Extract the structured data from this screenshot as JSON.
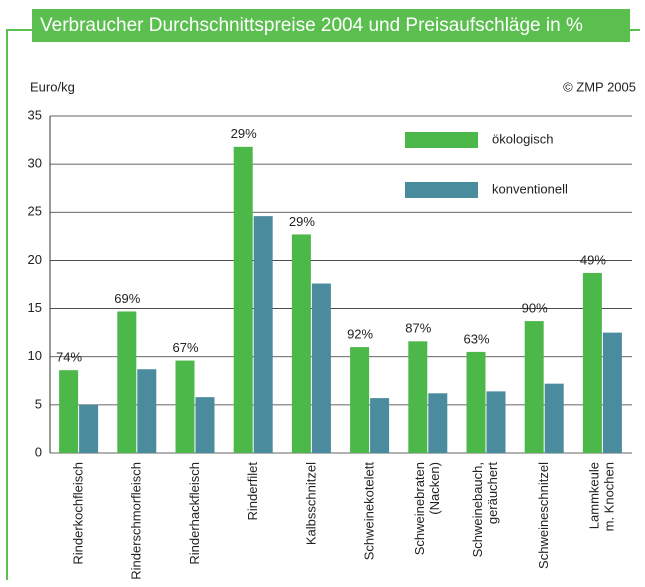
{
  "chart_data": {
    "type": "bar",
    "title": "Verbraucher Durchschnittspreise 2004 und Preisaufschläge in %",
    "y_label": "Euro/kg",
    "source": "© ZMP 2005",
    "categories": [
      "Rinderkochfleisch",
      "Rinderschmorfleisch",
      "Rinderhackfleisch",
      "Rinderfilet",
      "Kalbsschnitzel",
      "Schweinekotelett",
      "Schweinebraten\n(Nacken)",
      "Schweinebauch,\ngeräuchert",
      "Schweineschnitzel",
      "Lammkeule\nm. Knochen"
    ],
    "series": [
      {
        "name": "ökologisch",
        "color": "#4cb84a",
        "values": [
          8.6,
          14.7,
          9.6,
          31.8,
          22.7,
          11.0,
          11.6,
          10.5,
          13.7,
          18.7
        ]
      },
      {
        "name": "konventionell",
        "color": "#4b8b9e",
        "values": [
          5.0,
          8.7,
          5.8,
          24.6,
          17.6,
          5.7,
          6.2,
          6.4,
          7.2,
          12.5
        ]
      }
    ],
    "annotations": [
      "74%",
      "69%",
      "67%",
      "29%",
      "29%",
      "92%",
      "87%",
      "63%",
      "90%",
      "49%"
    ],
    "ylim": [
      0,
      35
    ],
    "yticks": [
      0,
      5,
      10,
      15,
      20,
      25,
      30,
      35
    ],
    "grid": true
  }
}
